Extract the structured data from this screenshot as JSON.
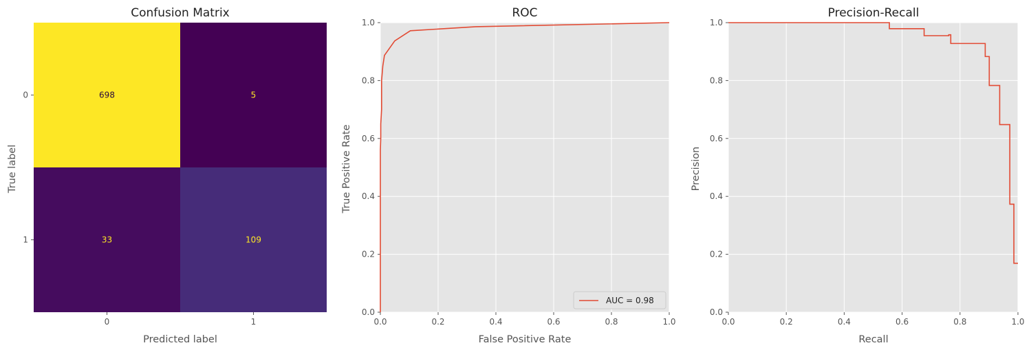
{
  "chart_data": [
    {
      "type": "heatmap",
      "title": "Confusion Matrix",
      "xlabel": "Predicted label",
      "ylabel": "True label",
      "x_categories": [
        "0",
        "1"
      ],
      "y_categories": [
        "0",
        "1"
      ],
      "values": [
        [
          698,
          5
        ],
        [
          33,
          109
        ]
      ],
      "colormap": "viridis",
      "grid": false
    },
    {
      "type": "line",
      "title": "ROC",
      "xlabel": "False Positive Rate",
      "ylabel": "True Positive Rate",
      "xlim": [
        0,
        1
      ],
      "ylim": [
        0,
        1
      ],
      "xticks": [
        "0.0",
        "0.2",
        "0.4",
        "0.6",
        "0.8",
        "1.0"
      ],
      "yticks": [
        "0.0",
        "0.2",
        "0.4",
        "0.6",
        "0.8",
        "1.0"
      ],
      "grid": true,
      "legend": {
        "placement": "lower-right",
        "entries": [
          "AUC = 0.98"
        ]
      },
      "series": [
        {
          "name": "AUC = 0.98",
          "color": "#e24a33",
          "x": [
            0.0,
            0.0,
            0.0,
            0.0,
            0.0014,
            0.0014,
            0.0043,
            0.0043,
            0.0085,
            0.0142,
            0.0498,
            0.1038,
            0.33,
            1.0
          ],
          "y": [
            0.0,
            0.08,
            0.35,
            0.56,
            0.6,
            0.65,
            0.7,
            0.8,
            0.85,
            0.887,
            0.937,
            0.972,
            0.986,
            1.0
          ]
        }
      ]
    },
    {
      "type": "line",
      "title": "Precision-Recall",
      "xlabel": "Recall",
      "ylabel": "Precision",
      "xlim": [
        0,
        1
      ],
      "ylim": [
        0,
        1
      ],
      "xticks": [
        "0.0",
        "0.2",
        "0.4",
        "0.6",
        "0.8",
        "1.0"
      ],
      "yticks": [
        "0.0",
        "0.2",
        "0.4",
        "0.6",
        "0.8",
        "1.0"
      ],
      "grid": true,
      "step": true,
      "series": [
        {
          "color": "#e24a33",
          "x": [
            1.0,
            0.986,
            0.986,
            0.972,
            0.972,
            0.937,
            0.937,
            0.901,
            0.901,
            0.887,
            0.887,
            0.768,
            0.768,
            0.761,
            0.761,
            0.676,
            0.676,
            0.556,
            0.556,
            0.0
          ],
          "y": [
            0.169,
            0.169,
            0.373,
            0.373,
            0.648,
            0.648,
            0.783,
            0.783,
            0.883,
            0.883,
            0.928,
            0.928,
            0.958,
            0.958,
            0.955,
            0.955,
            0.979,
            0.979,
            1.0,
            1.0
          ]
        }
      ]
    }
  ]
}
